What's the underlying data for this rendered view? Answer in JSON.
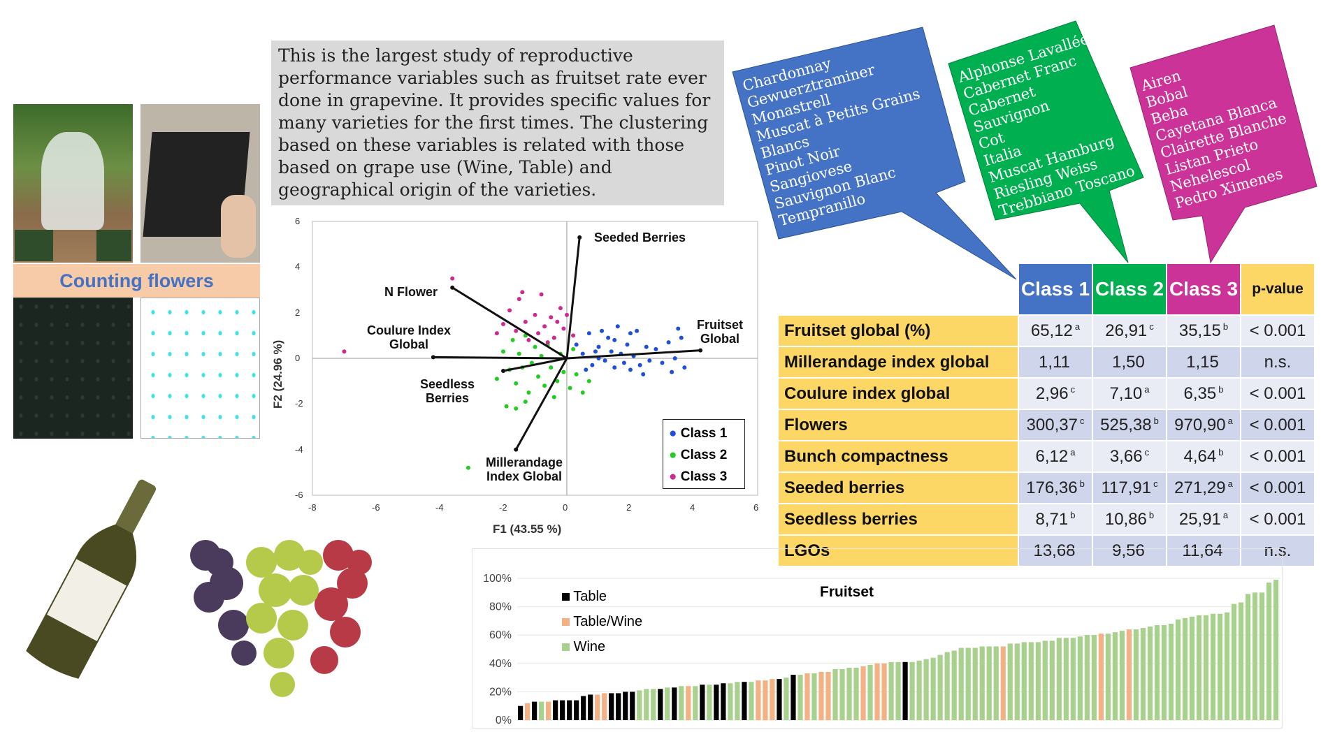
{
  "summary": "This is the largest study of reproductive performance variables such as fruitset rate ever done in grapevine. It provides specific values for many varieties for the first times. The clustering based on these variables is related with those based on grape use (Wine, Table) and geographical origin of the varieties.",
  "banner": "Counting flowers",
  "callouts": [
    {
      "class": "Class 1",
      "color": "#4472c4",
      "varieties": [
        "Chardonnay",
        "Gewuerztraminer",
        "Monastrell",
        "Muscat à Petits Grains",
        "Blancs",
        "Pinot Noir",
        "Sangiovese",
        "Sauvignon Blanc",
        "Tempranillo"
      ]
    },
    {
      "class": "Class 2",
      "color": "#00b050",
      "varieties": [
        "Alphonse Lavallée",
        "Cabernet Franc",
        "Cabernet",
        "Sauvignon",
        "Cot",
        "Italia",
        "Muscat Hamburg",
        "Riesling Weiss",
        "Trebbiano Toscano"
      ]
    },
    {
      "class": "Class 3",
      "color": "#cc3399",
      "varieties": [
        "Airen",
        "Bobal",
        "Beba",
        "Cayetana Blanca",
        "Clairette Blanche",
        "Listan Prieto",
        "Nehelescol",
        "Pedro Ximenes"
      ]
    }
  ],
  "table": {
    "headers": [
      "Class 1",
      "Class 2",
      "Class 3",
      "p-value"
    ],
    "rows": [
      {
        "label": "Fruitset global (%)",
        "cells": [
          [
            "65,12",
            "a"
          ],
          [
            "26,91",
            "c"
          ],
          [
            "35,15",
            "b"
          ]
        ],
        "p": "< 0.001"
      },
      {
        "label": "Millerandage index global",
        "cells": [
          [
            "1,11",
            ""
          ],
          [
            "1,50",
            ""
          ],
          [
            "1,15",
            ""
          ]
        ],
        "p": "n.s."
      },
      {
        "label": "Coulure index global",
        "cells": [
          [
            "2,96",
            "c"
          ],
          [
            "7,10",
            "a"
          ],
          [
            "6,35",
            "b"
          ]
        ],
        "p": "< 0.001"
      },
      {
        "label": "Flowers",
        "cells": [
          [
            "300,37",
            "c"
          ],
          [
            "525,38",
            "b"
          ],
          [
            "970,90",
            "a"
          ]
        ],
        "p": "< 0.001"
      },
      {
        "label": "Bunch compactness",
        "cells": [
          [
            "6,12",
            "a"
          ],
          [
            "3,66",
            "c"
          ],
          [
            "4,64",
            "b"
          ]
        ],
        "p": "< 0.001"
      },
      {
        "label": "Seeded berries",
        "cells": [
          [
            "176,36",
            "b"
          ],
          [
            "117,91",
            "c"
          ],
          [
            "271,29",
            "a"
          ]
        ],
        "p": "< 0.001"
      },
      {
        "label": "Seedless berries",
        "cells": [
          [
            "8,71",
            "b"
          ],
          [
            "10,86",
            "b"
          ],
          [
            "25,91",
            "a"
          ]
        ],
        "p": "< 0.001"
      },
      {
        "label": "LGOs",
        "cells": [
          [
            "13,68",
            ""
          ],
          [
            "9,56",
            ""
          ],
          [
            "11,64",
            ""
          ]
        ],
        "p": "n.s."
      }
    ]
  },
  "chart_data": [
    {
      "type": "scatter",
      "title": "",
      "xlabel": "F1 (43.55 %)",
      "ylabel": "F2 (24.96 %)",
      "xlim": [
        -8,
        6
      ],
      "ylim": [
        -6,
        6
      ],
      "xticks": [
        "-8",
        "-6",
        "-4",
        "-2",
        "0",
        "2",
        "4",
        "6"
      ],
      "yticks": [
        "6",
        "4",
        "2",
        "0",
        "-2",
        "-4",
        "-6"
      ],
      "legend": [
        "Class 1",
        "Class 2",
        "Class 3"
      ],
      "legend_position": "bottom-right",
      "colors": [
        "#1f4fd8",
        "#22cc22",
        "#cc2a8f"
      ],
      "series": [
        {
          "name": "Class 1",
          "points": [
            [
              0.3,
              0.6
            ],
            [
              0.5,
              0.2
            ],
            [
              0.7,
              1.1
            ],
            [
              0.8,
              -0.3
            ],
            [
              1,
              0.5
            ],
            [
              1.1,
              1.2
            ],
            [
              1.2,
              -0.1
            ],
            [
              1.3,
              0.9
            ],
            [
              1.4,
              0.3
            ],
            [
              1.5,
              -0.4
            ],
            [
              1.6,
              1.4
            ],
            [
              1.7,
              0.2
            ],
            [
              1.8,
              -0.2
            ],
            [
              1.9,
              0.6
            ],
            [
              2.0,
              -0.5
            ],
            [
              2.1,
              0.1
            ],
            [
              2.2,
              1.2
            ],
            [
              2.3,
              -0.3
            ],
            [
              2.5,
              0.5
            ],
            [
              2.6,
              -0.1
            ],
            [
              2.8,
              0.4
            ],
            [
              3.0,
              -0.2
            ],
            [
              3.2,
              0.7
            ],
            [
              3.3,
              -0.6
            ],
            [
              3.4,
              0
            ],
            [
              3.6,
              0.9
            ],
            [
              3.7,
              -0.4
            ],
            [
              0.6,
              -0.5
            ],
            [
              1.0,
              0.0
            ],
            [
              1.5,
              0.8
            ],
            [
              2.4,
              -0.7
            ],
            [
              3.5,
              1.3
            ],
            [
              2.0,
              1.1
            ],
            [
              0.9,
              0.3
            ]
          ]
        },
        {
          "name": "Class 2",
          "points": [
            [
              -2,
              0.3
            ],
            [
              -1.8,
              -0.5
            ],
            [
              -1.7,
              0.8
            ],
            [
              -1.6,
              -1.1
            ],
            [
              -1.5,
              0.2
            ],
            [
              -1.4,
              -0.4
            ],
            [
              -1.3,
              1.0
            ],
            [
              -1.2,
              -1.5
            ],
            [
              -1.1,
              -0.2
            ],
            [
              -1.0,
              0.5
            ],
            [
              -0.9,
              -0.8
            ],
            [
              -0.8,
              0.1
            ],
            [
              -0.7,
              -1.2
            ],
            [
              -0.6,
              0.6
            ],
            [
              -0.5,
              -0.4
            ],
            [
              -0.4,
              0.9
            ],
            [
              -0.3,
              -1.0
            ],
            [
              -0.2,
              0.2
            ],
            [
              -0.1,
              -0.6
            ],
            [
              0.1,
              -1.3
            ],
            [
              0.3,
              -0.7
            ],
            [
              0.5,
              -1.5
            ],
            [
              0.7,
              -1.0
            ],
            [
              0.2,
              0.4
            ],
            [
              -1.9,
              -2.1
            ],
            [
              -1.6,
              -2.2
            ],
            [
              -2.2,
              -0.9
            ],
            [
              -1.3,
              -1.9
            ],
            [
              -0.4,
              -1.7
            ],
            [
              -3.1,
              -4.8
            ]
          ]
        },
        {
          "name": "Class 3",
          "points": [
            [
              -7,
              0.3
            ],
            [
              -3.6,
              3.5
            ],
            [
              -2.0,
              1.5
            ],
            [
              -1.8,
              2.1
            ],
            [
              -1.6,
              1.2
            ],
            [
              -1.5,
              2.6
            ],
            [
              -1.3,
              1.6
            ],
            [
              -1.2,
              0.8
            ],
            [
              -1.0,
              1.9
            ],
            [
              -0.9,
              1.1
            ],
            [
              -0.8,
              2.8
            ],
            [
              -0.7,
              1.4
            ],
            [
              -0.6,
              0.7
            ],
            [
              -0.5,
              1.8
            ],
            [
              -0.4,
              0.9
            ],
            [
              -0.3,
              1.6
            ],
            [
              -0.2,
              2.2
            ],
            [
              -0.1,
              1.3
            ],
            [
              0.2,
              1.0
            ],
            [
              -1.4,
              2.9
            ],
            [
              0,
              1.9
            ],
            [
              -2.2,
              1.1
            ]
          ]
        }
      ],
      "vectors": [
        {
          "name": "Seeded Berries",
          "x": 0.4,
          "y": 5.3
        },
        {
          "name": "N Flower",
          "x": -3.6,
          "y": 3.1
        },
        {
          "name": "Fruitset Global",
          "x": 4.2,
          "y": 0.35
        },
        {
          "name": "Coulure Index Global",
          "x": -4.2,
          "y": 0.05
        },
        {
          "name": "Seedless Berries",
          "x": -2.0,
          "y": -0.55
        },
        {
          "name": "Millerandage Index Global",
          "x": -1.6,
          "y": -4.0
        }
      ]
    },
    {
      "type": "bar",
      "title": "Fruitset",
      "ylim": [
        0,
        100
      ],
      "yticks": [
        "100%",
        "80%",
        "60%",
        "40%",
        "20%",
        "0%"
      ],
      "legend": [
        "Table",
        "Table/Wine",
        "Wine"
      ],
      "legend_position": "top-left",
      "colors": [
        "#000000",
        "#f4b183",
        "#a9d18e"
      ],
      "values": [
        10,
        12,
        13,
        13,
        13,
        14,
        14,
        14,
        14,
        17,
        18,
        18,
        19,
        19,
        19,
        20,
        20,
        21,
        22,
        22,
        22,
        23,
        23,
        24,
        24,
        24,
        25,
        25,
        25,
        26,
        26,
        27,
        27,
        27,
        28,
        28,
        29,
        29,
        30,
        32,
        32,
        33,
        33,
        34,
        34,
        36,
        36,
        37,
        37,
        38,
        39,
        40,
        40,
        41,
        41,
        41,
        41,
        42,
        43,
        44,
        46,
        48,
        49,
        51,
        51,
        51,
        52,
        52,
        52,
        52,
        54,
        54,
        55,
        55,
        55,
        56,
        56,
        58,
        58,
        58,
        59,
        60,
        60,
        61,
        61,
        62,
        63,
        64,
        64,
        65,
        66,
        67,
        67,
        68,
        71,
        72,
        73,
        74,
        74,
        75,
        75,
        76,
        82,
        83,
        89,
        90,
        90,
        97,
        99
      ],
      "category_index": [
        0,
        1,
        0,
        2,
        1,
        0,
        0,
        0,
        0,
        0,
        0,
        1,
        1,
        0,
        0,
        0,
        0,
        2,
        2,
        2,
        0,
        2,
        0,
        2,
        1,
        2,
        0,
        2,
        0,
        0,
        2,
        2,
        0,
        2,
        1,
        1,
        1,
        0,
        2,
        0,
        2,
        1,
        2,
        1,
        1,
        2,
        2,
        2,
        2,
        1,
        2,
        1,
        1,
        2,
        2,
        0,
        2,
        2,
        2,
        2,
        2,
        2,
        2,
        2,
        2,
        2,
        2,
        2,
        2,
        1,
        2,
        2,
        2,
        2,
        2,
        2,
        2,
        2,
        2,
        2,
        2,
        2,
        2,
        1,
        2,
        2,
        2,
        1,
        2,
        2,
        2,
        2,
        2,
        2,
        2,
        2,
        2,
        2,
        2,
        2,
        2,
        2,
        2,
        2,
        2,
        2,
        2,
        2,
        2
      ]
    }
  ]
}
